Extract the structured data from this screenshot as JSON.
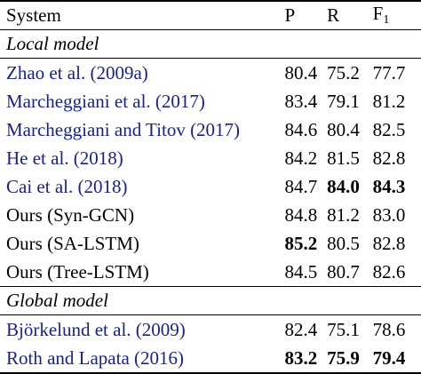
{
  "header": {
    "system": "System",
    "p": "P",
    "r": "R",
    "f": "F",
    "f_sub": "1"
  },
  "sections": [
    {
      "label": "Local model",
      "rows": [
        {
          "system": "Zhao et al. (2009a)",
          "p": "80.4",
          "r": "75.2",
          "f": "77.7",
          "cite": true,
          "bold": []
        },
        {
          "system": "Marcheggiani et al. (2017)",
          "p": "83.4",
          "r": "79.1",
          "f": "81.2",
          "cite": true,
          "bold": []
        },
        {
          "system": "Marcheggiani and Titov (2017)",
          "p": "84.6",
          "r": "80.4",
          "f": "82.5",
          "cite": true,
          "bold": []
        },
        {
          "system": "He et al. (2018)",
          "p": "84.2",
          "r": "81.5",
          "f": "82.8",
          "cite": true,
          "bold": []
        },
        {
          "system": "Cai et al. (2018)",
          "p": "84.7",
          "r": "84.0",
          "f": "84.3",
          "cite": true,
          "bold": [
            "r",
            "f"
          ]
        },
        {
          "system": "Ours (Syn-GCN)",
          "p": "84.8",
          "r": "81.2",
          "f": "83.0",
          "cite": false,
          "bold": []
        },
        {
          "system": "Ours (SA-LSTM)",
          "p": "85.2",
          "r": "80.5",
          "f": "82.8",
          "cite": false,
          "bold": [
            "p"
          ]
        },
        {
          "system": "Ours (Tree-LSTM)",
          "p": "84.5",
          "r": "80.7",
          "f": "82.6",
          "cite": false,
          "bold": []
        }
      ]
    },
    {
      "label": "Global model",
      "rows": [
        {
          "system": "Björkelund et al. (2009)",
          "p": "82.4",
          "r": "75.1",
          "f": "78.6",
          "cite": true,
          "bold": []
        },
        {
          "system": "Roth and Lapata (2016)",
          "p": "83.2",
          "r": "75.9",
          "f": "79.4",
          "cite": true,
          "bold": [
            "p",
            "r",
            "f"
          ]
        }
      ]
    }
  ],
  "colors": {
    "citation": "#1a237e",
    "text": "#000000"
  }
}
